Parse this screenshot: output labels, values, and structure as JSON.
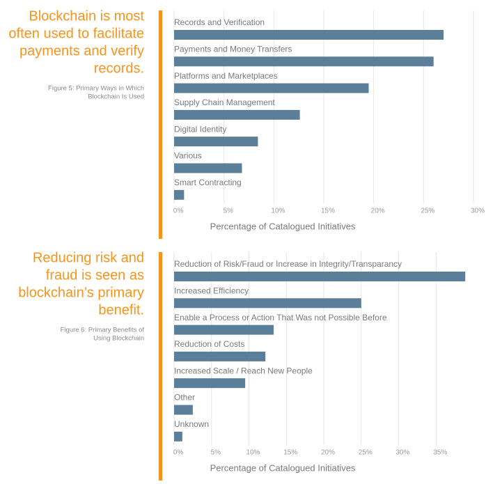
{
  "chart_data": [
    {
      "type": "barh",
      "title": [
        "Blockchain is most",
        "often used to facilitate",
        "payments and verify",
        "records."
      ],
      "subtitle": [
        "Figure 5: Primary Ways in Which",
        "Blockchain Is Used"
      ],
      "categories": [
        "Records and Verification",
        "Payments and Money Transfers",
        "Platforms and Marketplaces",
        "Supply Chain Management",
        "Digital Identity",
        "Various",
        "Smart Contracting"
      ],
      "values": [
        27,
        26,
        19.5,
        12.6,
        8.4,
        6.8,
        1.0
      ],
      "color": "#5b7f99",
      "xlabel": "Percentage of Catalogued Initiatives",
      "xlim": [
        0,
        30
      ],
      "xticks": [
        {
          "value": 0,
          "label": "0%"
        },
        {
          "value": 5,
          "label": "5%"
        },
        {
          "value": 10,
          "label": "10%"
        },
        {
          "value": 15,
          "label": "15%"
        },
        {
          "value": 20,
          "label": "20%"
        },
        {
          "value": 25,
          "label": "25%"
        },
        {
          "value": 30,
          "label": "30%"
        }
      ],
      "grid": true
    },
    {
      "type": "barh",
      "title": [
        "Reducing risk and",
        "fraud is seen as",
        "blockchain’s primary",
        "benefit."
      ],
      "subtitle": [
        "Figure 6: Primary Benefits of",
        "Using Blockchain"
      ],
      "categories": [
        "Reduction of Risk/Fraud or Increase in Integrity/Transparancy",
        "Increased Efficiency",
        "Enable a Process or Action That Was not Possible Before",
        "Reduction of Costs",
        "Increased Scale / Reach New People",
        "Other",
        "Unknown"
      ],
      "values": [
        38.9,
        25.0,
        13.3,
        12.2,
        9.5,
        2.5,
        1.1
      ],
      "color": "#5b7f99",
      "xlabel": "Percentage of Catalogued Initiatives",
      "xlim": [
        0,
        40
      ],
      "xticks": [
        {
          "value": 0,
          "label": "0%"
        },
        {
          "value": 5,
          "label": "5%"
        },
        {
          "value": 10,
          "label": "10%"
        },
        {
          "value": 15,
          "label": "15%"
        },
        {
          "value": 20,
          "label": "20%"
        },
        {
          "value": 25,
          "label": "25%"
        },
        {
          "value": 30,
          "label": "30%"
        },
        {
          "value": 35,
          "label": "35%"
        }
      ],
      "grid": true
    }
  ]
}
